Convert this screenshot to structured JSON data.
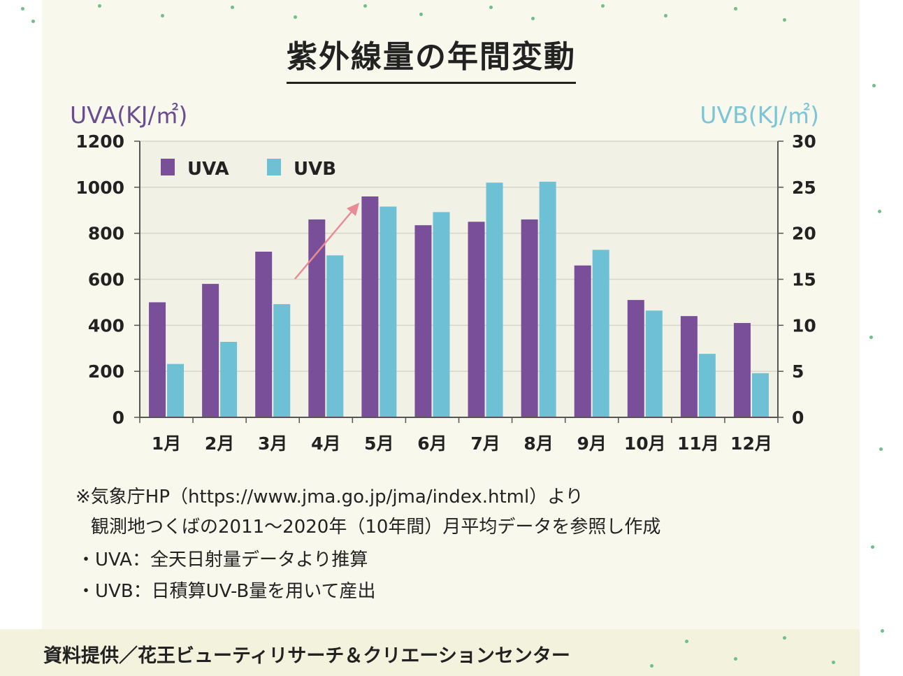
{
  "chart_data": {
    "type": "bar",
    "title": "紫外線量の年間変動",
    "y_left_label": "UVA(KJ/㎡)",
    "y_right_label": "UVB(KJ/㎡)",
    "categories": [
      "1月",
      "2月",
      "3月",
      "4月",
      "5月",
      "6月",
      "7月",
      "8月",
      "9月",
      "10月",
      "11月",
      "12月"
    ],
    "series": [
      {
        "name": "UVA",
        "axis": "left",
        "color": "#7a4f9a",
        "values": [
          500,
          580,
          720,
          860,
          960,
          835,
          850,
          860,
          660,
          510,
          440,
          410
        ]
      },
      {
        "name": "UVB",
        "axis": "right",
        "color": "#6ec1d5",
        "values": [
          5.8,
          8.2,
          12.3,
          17.6,
          22.9,
          22.3,
          25.5,
          25.6,
          18.2,
          11.6,
          6.9,
          4.8
        ]
      }
    ],
    "ylim_left": [
      0,
      1200
    ],
    "ylim_right": [
      0,
      30
    ],
    "left_ticks": [
      "0",
      "200",
      "400",
      "600",
      "800",
      "1000",
      "1200"
    ],
    "right_ticks": [
      "0",
      "5",
      "10",
      "15",
      "20",
      "25",
      "30"
    ],
    "legend_position": "top-left",
    "grid": "horizontal",
    "annotation": "arrow from Mar to May indicating rise"
  },
  "notes": [
    "※気象庁HP（https://www.jma.go.jp/jma/index.html）より",
    "観測地つくばの2011～2020年（10年間）月平均データを参照し作成",
    "・UVA：全天日射量データより推算",
    "・UVB：日積算UV-B量を用いて産出"
  ],
  "source": "資料提供／花王ビューティリサーチ＆クリエーションセンター"
}
